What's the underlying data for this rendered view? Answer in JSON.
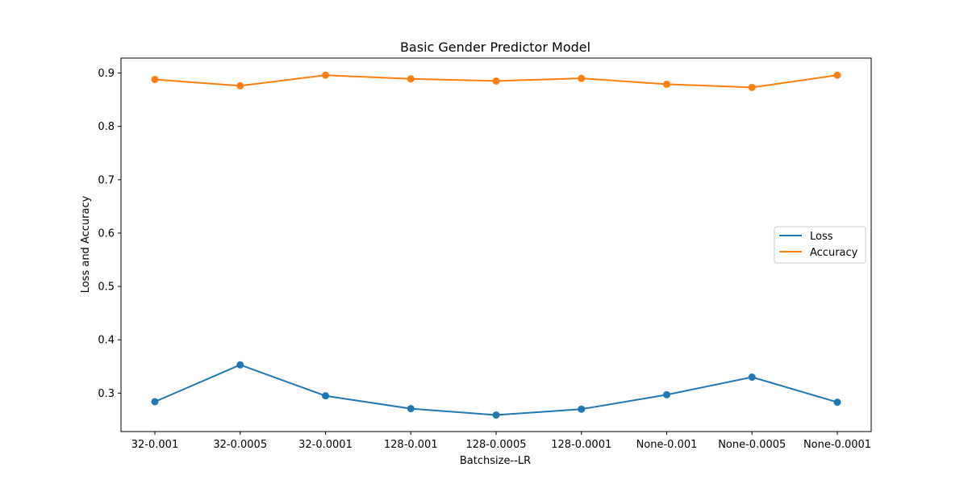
{
  "chart_data": {
    "type": "line",
    "title": "Basic Gender Predictor Model",
    "xlabel": "Batchsize--LR",
    "ylabel": "Loss and Accuracy",
    "categories": [
      "32-0.001",
      "32-0.0005",
      "32-0.0001",
      "128-0.001",
      "128-0.0005",
      "128-0.0001",
      "None-0.001",
      "None-0.0005",
      "None-0.0001"
    ],
    "ylim": [
      0.228,
      0.928
    ],
    "yticks": [
      "0.3",
      "0.4",
      "0.5",
      "0.6",
      "0.7",
      "0.8",
      "0.9"
    ],
    "grid": false,
    "legend_position": "center-right",
    "markers": true,
    "series": [
      {
        "name": "Loss",
        "color": "#1f77b4",
        "values": [
          0.284,
          0.353,
          0.295,
          0.271,
          0.259,
          0.27,
          0.297,
          0.33,
          0.283
        ]
      },
      {
        "name": "Accuracy",
        "color": "#ff7f0e",
        "values": [
          0.888,
          0.876,
          0.896,
          0.889,
          0.885,
          0.89,
          0.879,
          0.873,
          0.896
        ]
      }
    ]
  }
}
